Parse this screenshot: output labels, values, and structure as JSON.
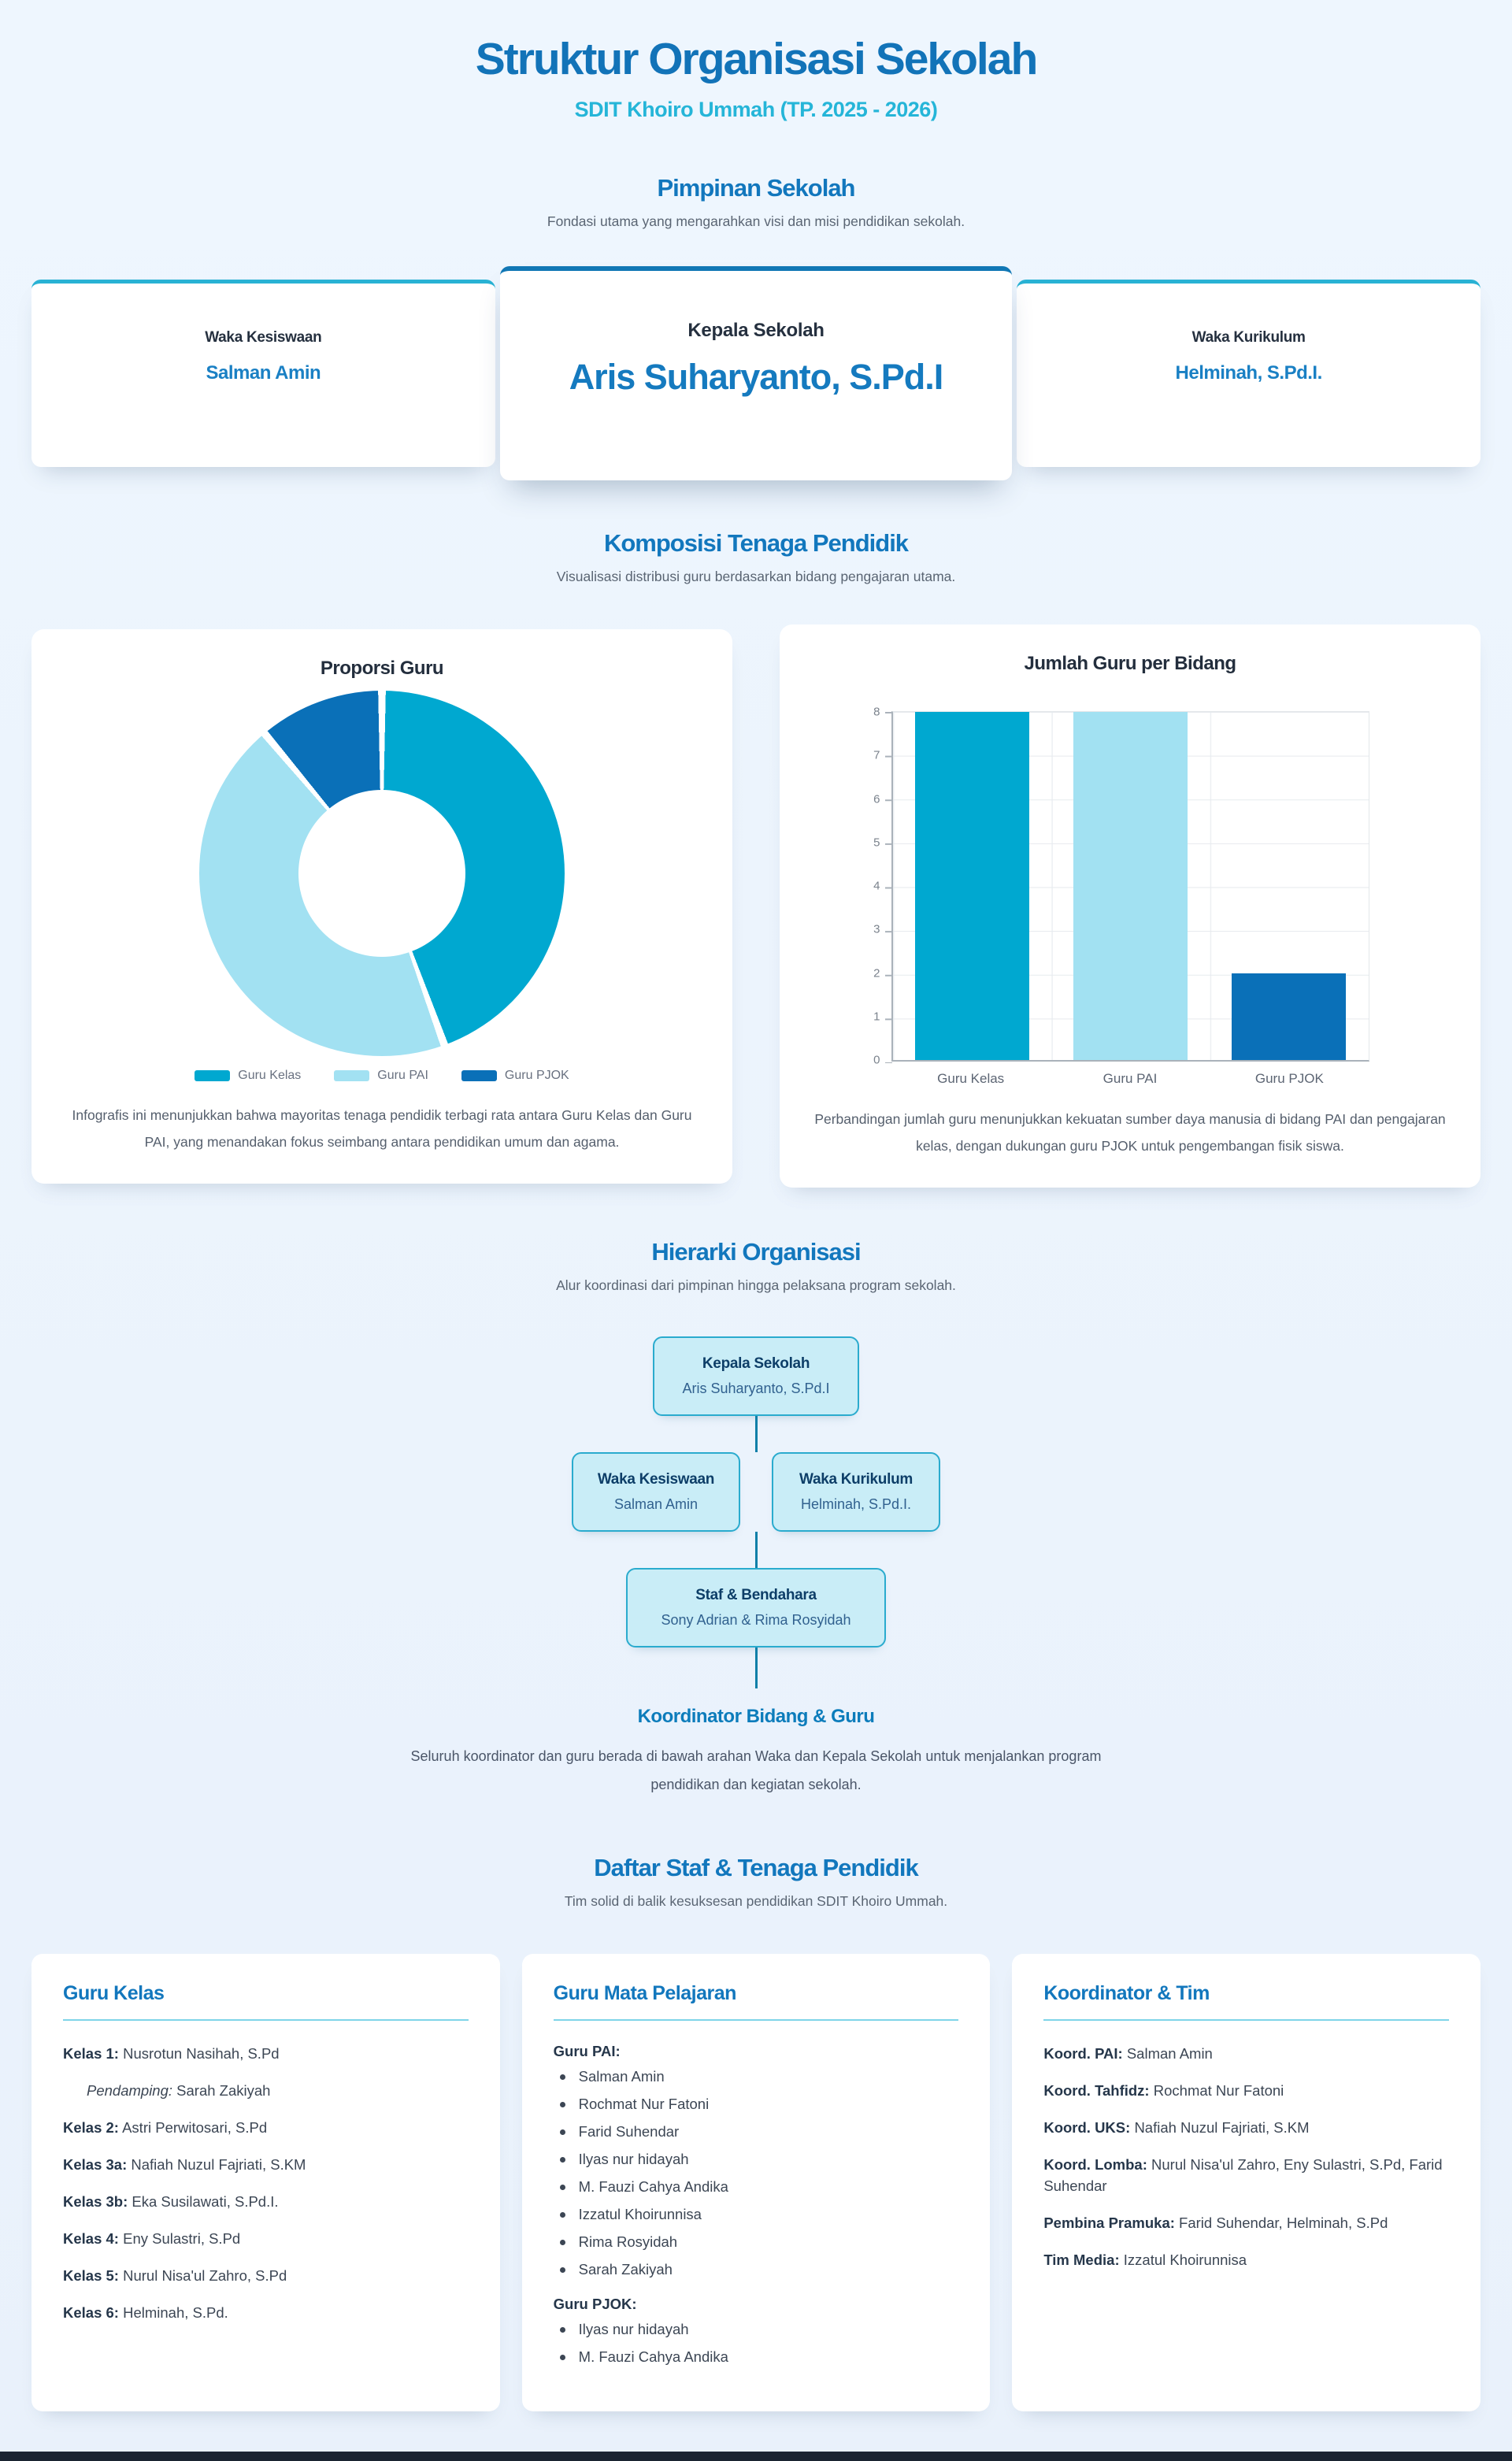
{
  "page": {
    "title": "Struktur Organisasi Sekolah",
    "subtitle": "SDIT Khoiro Ummah (TP. 2025 - 2026)"
  },
  "pimpinan": {
    "heading": "Pimpinan Sekolah",
    "subheading": "Fondasi utama yang mengarahkan visi dan misi pendidikan sekolah.",
    "cards": [
      {
        "role": "Waka Kesiswaan",
        "name": "Salman Amin"
      },
      {
        "role": "Kepala Sekolah",
        "name": "Aris Suharyanto, S.Pd.I"
      },
      {
        "role": "Waka Kurikulum",
        "name": "Helminah, S.Pd.I."
      }
    ]
  },
  "komposisi": {
    "heading": "Komposisi Tenaga Pendidik",
    "subheading": "Visualisasi distribusi guru berdasarkan bidang pengajaran utama.",
    "donut_caption": "Infografis ini menunjukkan bahwa mayoritas tenaga pendidik terbagi rata antara Guru Kelas dan Guru PAI, yang menandakan fokus seimbang antara pendidikan umum dan agama.",
    "bar_caption": "Perbandingan jumlah guru menunjukkan kekuatan sumber daya manusia di bidang PAI dan pengajaran kelas, dengan dukungan guru PJOK untuk pengembangan fisik siswa."
  },
  "chart_data": [
    {
      "type": "pie",
      "donut": true,
      "title": "Proporsi Guru",
      "labels": [
        "Guru Kelas",
        "Guru PAI",
        "Guru PJOK"
      ],
      "values": [
        8,
        8,
        2
      ],
      "colors": [
        "#00a8d0",
        "#a2e1f2",
        "#0a70b8"
      ],
      "legend_position": "bottom",
      "start_angle_deg": 0,
      "direction": "clockwise"
    },
    {
      "type": "bar",
      "title": "Jumlah Guru per Bidang",
      "categories": [
        "Guru Kelas",
        "Guru PAI",
        "Guru PJOK"
      ],
      "values": [
        8,
        8,
        2
      ],
      "colors": [
        "#00a8d0",
        "#a2e1f2",
        "#0a70b8"
      ],
      "ylim": [
        0,
        8
      ],
      "yticks": [
        0,
        1,
        2,
        3,
        4,
        5,
        6,
        7,
        8
      ],
      "grid": true,
      "legend_position": "none"
    }
  ],
  "hierarki": {
    "heading": "Hierarki Organisasi",
    "subheading": "Alur koordinasi dari pimpinan hingga pelaksana program sekolah.",
    "kepala": {
      "title": "Kepala Sekolah",
      "name": "Aris Suharyanto, S.Pd.I"
    },
    "waka_kesiswaan": {
      "title": "Waka Kesiswaan",
      "name": "Salman Amin"
    },
    "waka_kurikulum": {
      "title": "Waka Kurikulum",
      "name": "Helminah, S.Pd.I."
    },
    "staf": {
      "title": "Staf & Bendahara",
      "name": "Sony Adrian & Rima Rosyidah"
    },
    "koordinator_heading": "Koordinator Bidang & Guru",
    "koordinator_text": "Seluruh koordinator dan guru berada di bawah arahan Waka dan Kepala Sekolah untuk menjalankan program pendidikan dan kegiatan sekolah."
  },
  "daftar": {
    "heading": "Daftar Staf & Tenaga Pendidik",
    "subheading": "Tim solid di balik kesuksesan pendidikan SDIT Khoiro Ummah.",
    "guru_kelas": {
      "title": "Guru Kelas",
      "rows": [
        {
          "label": "Kelas 1:",
          "value": "Nusrotun Nasihah, S.Pd"
        },
        {
          "label": "Pendamping:",
          "value": "Sarah Zakiyah"
        },
        {
          "label": "Kelas 2:",
          "value": "Astri Perwitosari, S.Pd"
        },
        {
          "label": "Kelas 3a:",
          "value": "Nafiah Nuzul Fajriati, S.KM"
        },
        {
          "label": "Kelas 3b:",
          "value": "Eka Susilawati, S.Pd.I."
        },
        {
          "label": "Kelas 4:",
          "value": "Eny Sulastri, S.Pd"
        },
        {
          "label": "Kelas 5:",
          "value": "Nurul Nisa'ul Zahro, S.Pd"
        },
        {
          "label": "Kelas 6:",
          "value": "Helminah, S.Pd."
        }
      ]
    },
    "guru_mapel": {
      "title": "Guru Mata Pelajaran",
      "pai_label": "Guru PAI:",
      "pai": [
        "Salman Amin",
        "Rochmat Nur Fatoni",
        "Farid Suhendar",
        "Ilyas nur hidayah",
        "M. Fauzi Cahya Andika",
        "Izzatul Khoirunnisa",
        "Rima Rosyidah",
        "Sarah Zakiyah"
      ],
      "pjok_label": "Guru PJOK:",
      "pjok": [
        "Ilyas nur hidayah",
        "M. Fauzi Cahya Andika"
      ]
    },
    "koordinator": {
      "title": "Koordinator & Tim",
      "rows": [
        {
          "label": "Koord. PAI:",
          "value": "Salman Amin"
        },
        {
          "label": "Koord. Tahfidz:",
          "value": "Rochmat Nur Fatoni"
        },
        {
          "label": "Koord. UKS:",
          "value": "Nafiah Nuzul Fajriati, S.KM"
        },
        {
          "label": "Koord. Lomba:",
          "value": "Nurul Nisa'ul Zahro, Eny Sulastri, S.Pd, Farid Suhendar"
        },
        {
          "label": "Pembina Pramuka:",
          "value": "Farid Suhendar, Helminah, S.Pd"
        },
        {
          "label": "Tim Media:",
          "value": "Izzatul Khoirunnisa"
        }
      ]
    }
  },
  "colors": {
    "heading_blue": "#1277bd",
    "title_blue": "#1273b8",
    "cyan_accent": "#25b5d8",
    "name_blue": "#1a80c4",
    "dark_navy": "#25303f",
    "org_box_bg": "#c9edf7",
    "org_box_border": "#2aabce",
    "connector": "#0d7fa8",
    "footer": "#1b2431",
    "page_bg": "#eef6fe"
  }
}
